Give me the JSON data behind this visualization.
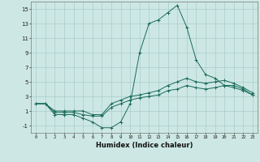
{
  "xlabel": "Humidex (Indice chaleur)",
  "bg_color": "#cde8e4",
  "grid_color": "#aaccca",
  "line_color": "#1a6b5a",
  "xlim": [
    -0.5,
    23.5
  ],
  "ylim": [
    -2,
    16
  ],
  "yticks": [
    -1,
    1,
    3,
    5,
    7,
    9,
    11,
    13,
    15
  ],
  "xtick_labels": [
    "0",
    "1",
    "2",
    "3",
    "4",
    "5",
    "6",
    "7",
    "8",
    "9",
    "10",
    "11",
    "12",
    "13",
    "14",
    "15",
    "16",
    "17",
    "18",
    "19",
    "20",
    "21",
    "22",
    "23"
  ],
  "line1_x": [
    0,
    1,
    2,
    3,
    4,
    5,
    6,
    7,
    8,
    9,
    10,
    11,
    12,
    13,
    14,
    15,
    16,
    17,
    18,
    19,
    20,
    21,
    22,
    23
  ],
  "line1_y": [
    2,
    2,
    0.5,
    0.5,
    0.5,
    0,
    -0.5,
    -1.3,
    -1.3,
    -0.5,
    2.0,
    9.0,
    13.0,
    13.5,
    14.5,
    15.5,
    12.5,
    8.0,
    6.0,
    5.5,
    4.5,
    4.5,
    4.0,
    3.2
  ],
  "line2_x": [
    0,
    1,
    2,
    3,
    4,
    5,
    6,
    7,
    8,
    9,
    10,
    11,
    12,
    13,
    14,
    15,
    16,
    17,
    18,
    19,
    20,
    21,
    22,
    23
  ],
  "line2_y": [
    2,
    2,
    1.0,
    1.0,
    1.0,
    1.0,
    0.5,
    0.5,
    2.0,
    2.5,
    3.0,
    3.2,
    3.5,
    3.8,
    4.5,
    5.0,
    5.5,
    5.0,
    4.8,
    5.0,
    5.2,
    4.8,
    4.2,
    3.5
  ],
  "line3_x": [
    0,
    1,
    2,
    3,
    4,
    5,
    6,
    7,
    8,
    9,
    10,
    11,
    12,
    13,
    14,
    15,
    16,
    17,
    18,
    19,
    20,
    21,
    22,
    23
  ],
  "line3_y": [
    2,
    2,
    0.8,
    0.8,
    0.8,
    0.5,
    0.3,
    0.3,
    1.5,
    2.0,
    2.5,
    2.8,
    3.0,
    3.2,
    3.8,
    4.0,
    4.5,
    4.2,
    4.0,
    4.2,
    4.5,
    4.2,
    3.8,
    3.2
  ]
}
